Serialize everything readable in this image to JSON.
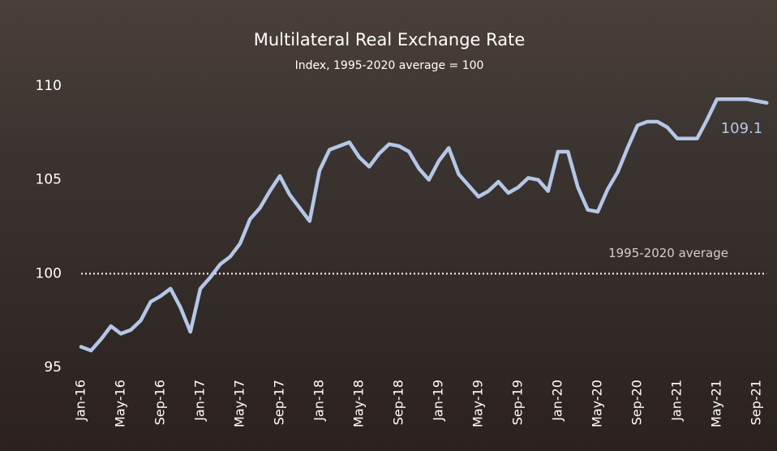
{
  "chart_data": {
    "type": "line",
    "title": "Multilateral Real Exchange Rate",
    "subtitle": "Index, 1995-2020 average = 100",
    "categories": [
      "Jan-16",
      null,
      null,
      null,
      "May-16",
      null,
      null,
      null,
      "Sep-16",
      null,
      null,
      null,
      "Jan-17",
      null,
      null,
      null,
      "May-17",
      null,
      null,
      null,
      "Sep-17",
      null,
      null,
      null,
      "Jan-18",
      null,
      null,
      null,
      "May-18",
      null,
      null,
      null,
      "Sep-18",
      null,
      null,
      null,
      "Jan-19",
      null,
      null,
      null,
      "May-19",
      null,
      null,
      null,
      "Sep-19",
      null,
      null,
      null,
      "Jan-20",
      null,
      null,
      null,
      "May-20",
      null,
      null,
      null,
      "Sep-20",
      null,
      null,
      null,
      "Jan-21",
      null,
      null,
      null,
      "May-21",
      null,
      null,
      null,
      "Sep-21",
      null
    ],
    "series": [
      {
        "name": "Multilateral Real Exchange Rate",
        "color": "#b4c7e7",
        "values": [
          96.1,
          95.9,
          96.5,
          97.2,
          96.8,
          97.0,
          97.5,
          98.5,
          98.8,
          99.2,
          98.2,
          96.9,
          99.2,
          99.8,
          100.5,
          100.9,
          101.6,
          102.9,
          103.5,
          104.4,
          105.2,
          104.2,
          103.5,
          102.8,
          105.5,
          106.6,
          106.8,
          107.0,
          106.2,
          105.7,
          106.4,
          106.9,
          106.8,
          106.5,
          105.6,
          105.0,
          106.0,
          106.7,
          105.3,
          104.7,
          104.1,
          104.4,
          104.9,
          104.3,
          104.6,
          105.1,
          105.0,
          104.4,
          106.5,
          106.5,
          104.6,
          103.4,
          103.3,
          104.5,
          105.4,
          106.7,
          107.9,
          108.1,
          108.1,
          107.8,
          107.2,
          107.2,
          107.2,
          108.2,
          109.3,
          109.3,
          109.3,
          109.3,
          109.2,
          109.1
        ]
      }
    ],
    "reference_line": {
      "value": 100,
      "label": "1995-2020 average"
    },
    "ylim": [
      95,
      110
    ],
    "yticks": [
      95,
      100,
      105,
      110
    ],
    "grid": false
  }
}
